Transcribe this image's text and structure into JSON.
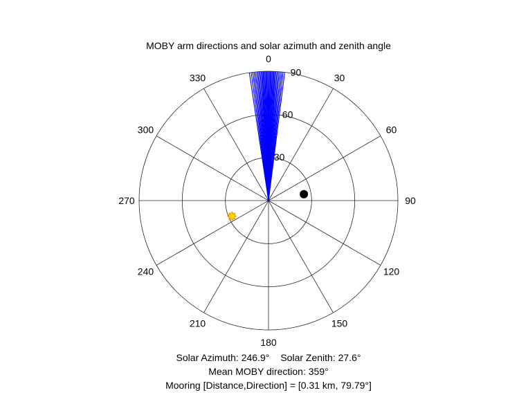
{
  "chart_data": {
    "type": "polar",
    "title": "MOBY arm directions and solar azimuth and zenith angle",
    "theta_direction": "clockwise",
    "theta_zero": "top",
    "theta_ticks": [
      "0",
      "30",
      "60",
      "90",
      "120",
      "150",
      "180",
      "210",
      "240",
      "270",
      "300",
      "330"
    ],
    "r_ticks": [
      "30",
      "60",
      "90"
    ],
    "r_max": 90,
    "grid": true,
    "arm_lines": {
      "color": "#0000ff",
      "r": 90,
      "directions_deg": [
        351.5,
        352.3,
        353,
        353.6,
        354.2,
        354.8,
        355.3,
        355.8,
        356.3,
        356.8,
        357.2,
        357.6,
        358,
        358.4,
        358.8,
        359.2,
        359.6,
        0,
        0.4,
        0.8,
        1.2,
        1.6,
        2,
        2.4,
        2.8,
        3.2,
        3.7,
        4.2,
        4.7,
        5.3,
        5.9,
        6.5,
        7.2
      ]
    },
    "sun_marker": {
      "azimuth_deg": 246.9,
      "zenith_deg": 27.6,
      "color": "#ffd700",
      "edge_color": "#e8a000"
    },
    "mooring_marker": {
      "direction_deg": 79.79,
      "r": 25,
      "color": "#000000"
    }
  },
  "captions": {
    "solar_azimuth": "Solar Azimuth: 246.9°",
    "solar_zenith": "Solar Zenith: 27.6°",
    "mean_direction": "Mean MOBY direction: 359°",
    "mooring": "Mooring [Distance,Direction] = [0.31 km, 79.79°]"
  }
}
